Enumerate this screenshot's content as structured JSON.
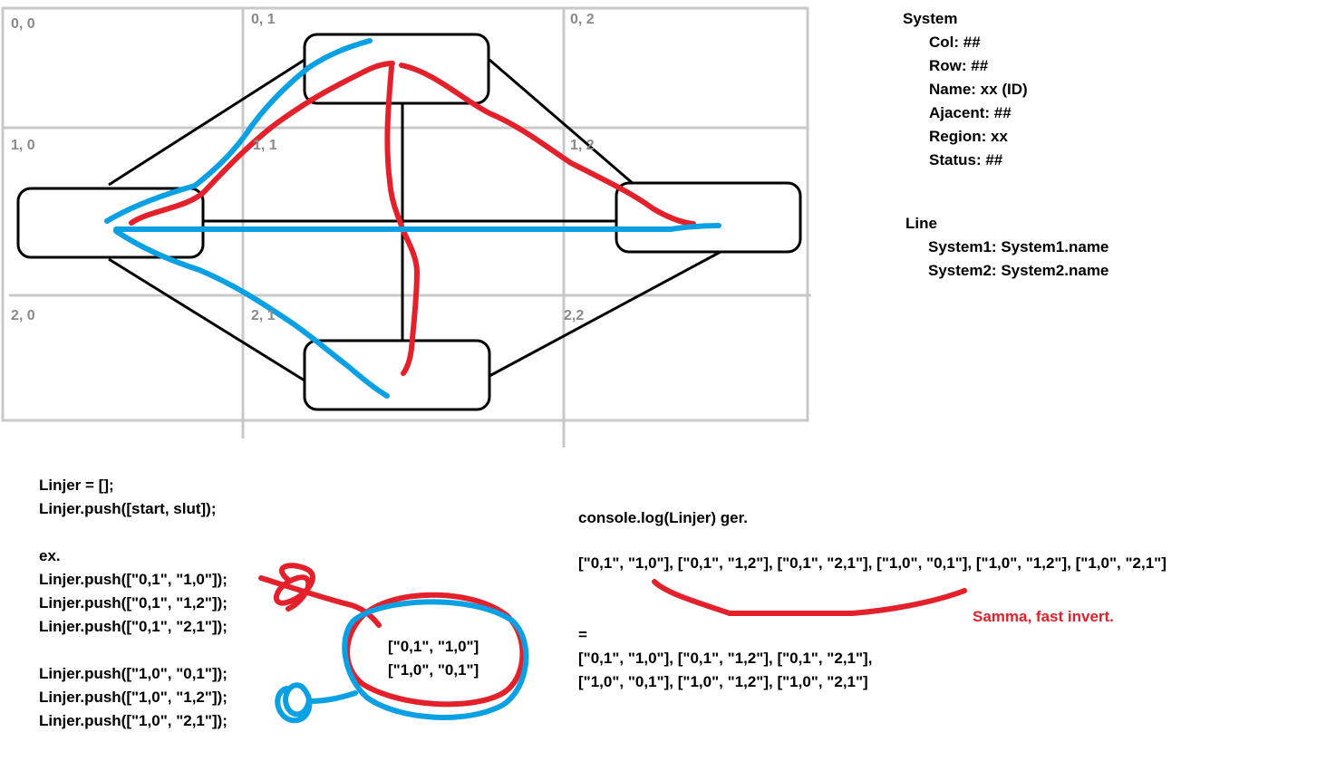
{
  "grid": {
    "cell_labels": [
      "0, 0",
      "0, 1",
      "0, 2",
      "1, 0",
      "1, 1",
      "1, 2",
      "2, 0",
      "2, 1",
      "2,2"
    ]
  },
  "system": {
    "title": "System",
    "fields": [
      "Col: ##",
      "Row: ##",
      "Name: xx (ID)",
      "Ajacent: ##",
      "Region: xx",
      "Status: ##"
    ]
  },
  "line": {
    "title": "Line",
    "fields": [
      "System1: System1.name",
      "System2: System2.name"
    ]
  },
  "code": {
    "lines": [
      "Linjer = [];",
      "Linjer.push([start, slut]);",
      "",
      "ex.",
      "Linjer.push([\"0,1\", \"1,0\"]);",
      "Linjer.push([\"0,1\", \"1,2\"]);",
      "Linjer.push([\"0,1\", \"2,1\"]);",
      "",
      "Linjer.push([\"1,0\", \"0,1\"]);",
      "Linjer.push([\"1,0\", \"1,2\"]);",
      "Linjer.push([\"1,0\", \"2,1\"]);"
    ]
  },
  "circled_pair": [
    "[\"0,1\", \"1,0\"]",
    "[\"1,0\", \"0,1\"]"
  ],
  "console": {
    "title": "console.log(Linjer) ger.",
    "output_line": "[\"0,1\", \"1,0\"], [\"0,1\", \"1,2\"], [\"0,1\", \"2,1\"], [\"1,0\", \"0,1\"], [\"1,0\", \"1,2\"], [\"1,0\", \"2,1\"]",
    "annotation": "Samma, fast invert.",
    "equals": "=",
    "result_lines": [
      "[\"0,1\", \"1,0\"], [\"0,1\", \"1,2\"], [\"0,1\", \"2,1\"],",
      "[\"1,0\", \"0,1\"], [\"1,0\", \"1,2\"], [\"1,0\", \"2,1\"]"
    ]
  },
  "colors": {
    "grid": "#c8c8c8",
    "outline": "#000000",
    "red_stroke": "#e4202a",
    "blue_stroke": "#0aa0e4",
    "cell_label": "#8a8a8a"
  }
}
